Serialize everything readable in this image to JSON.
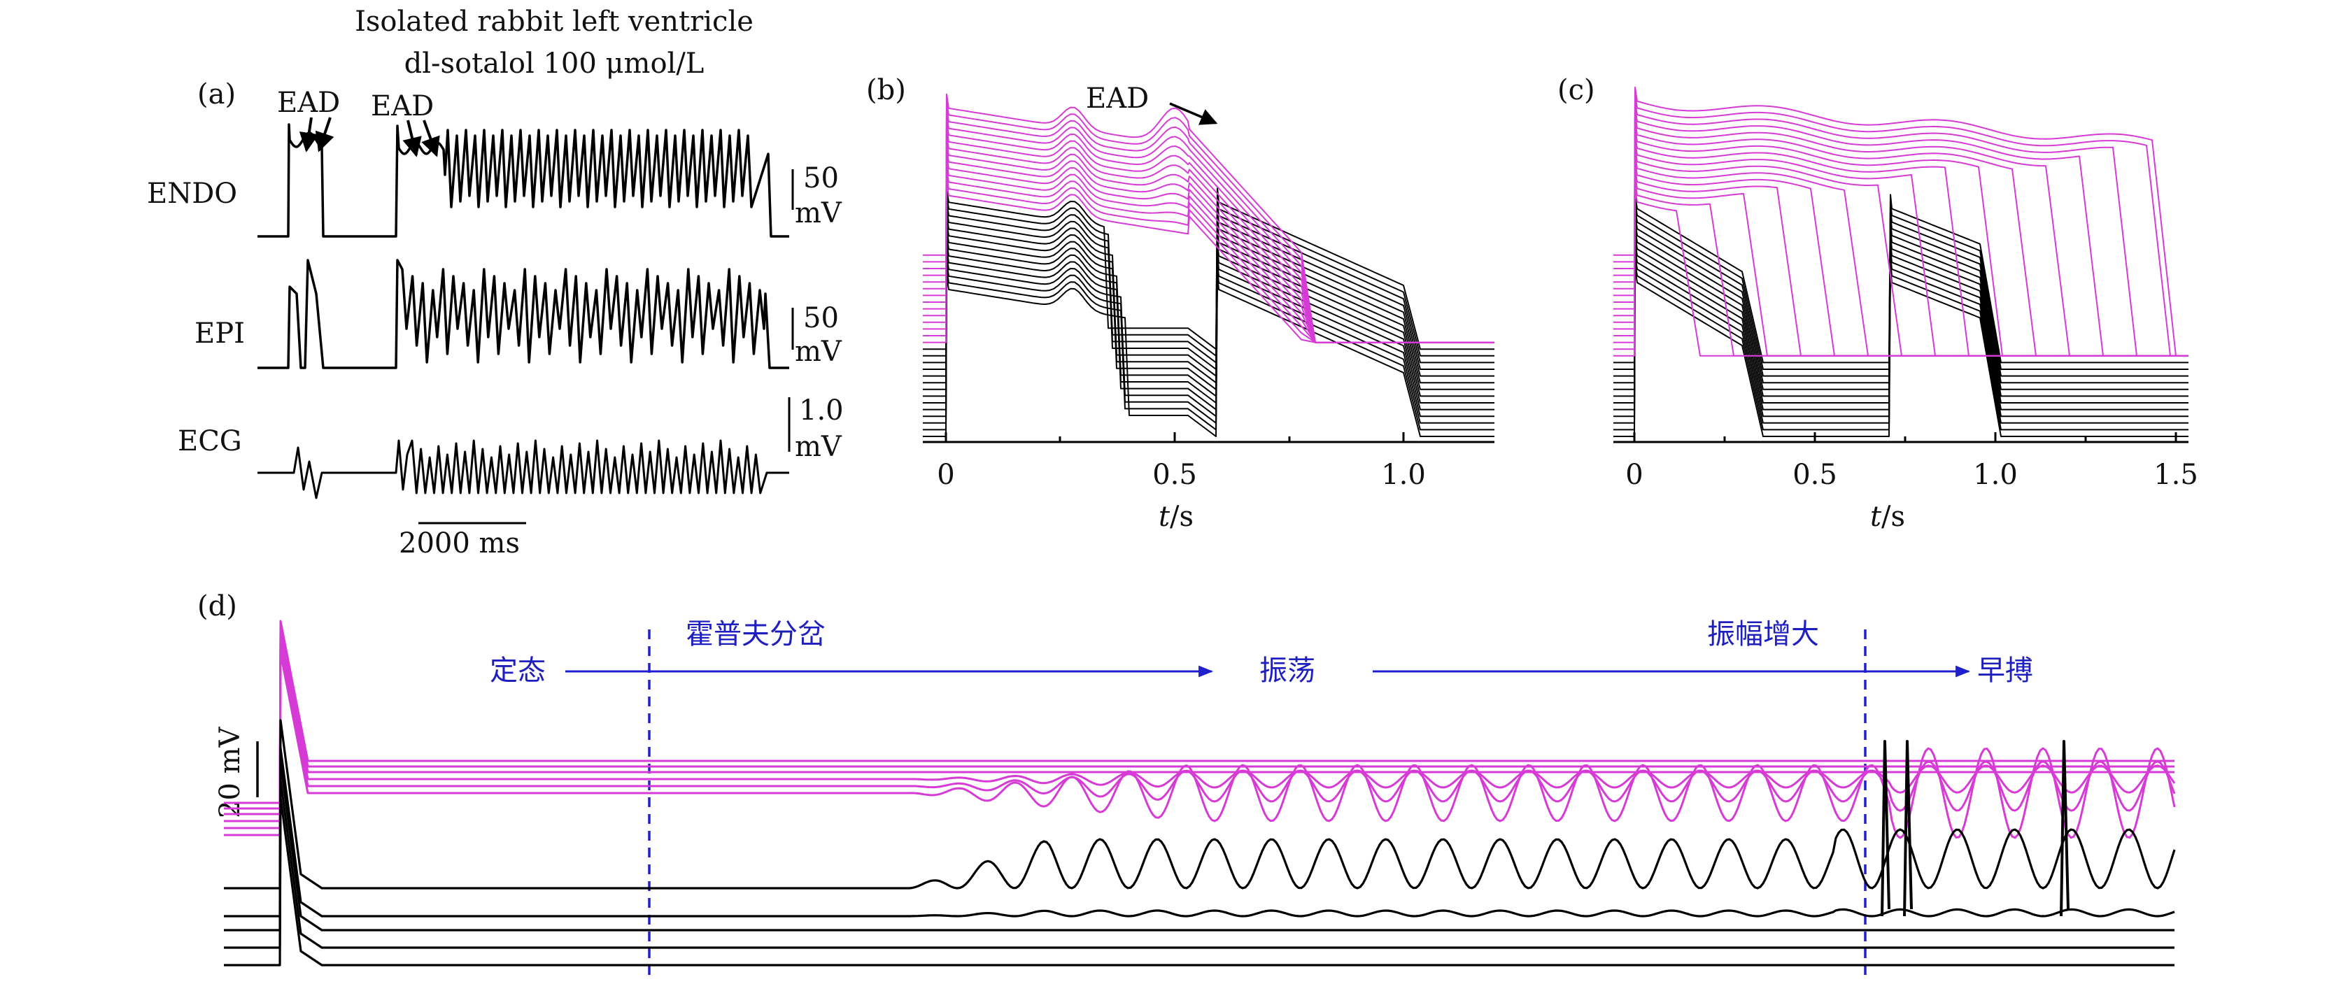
{
  "colors": {
    "magenta": "#d63bd6",
    "black": "#000000",
    "blue": "#1f1fcf"
  },
  "panel_a": {
    "label": "(a)",
    "title_line1": "Isolated rabbit left ventricle",
    "title_line2": "dl-sotalol 100 μmol/L",
    "ead_label_1": "EAD",
    "ead_label_2": "EAD",
    "traces": [
      {
        "name": "ENDO",
        "scale_value": "50",
        "scale_unit": "mV"
      },
      {
        "name": "EPI",
        "scale_value": "50",
        "scale_unit": "mV"
      },
      {
        "name": "ECG",
        "scale_value": "1.0",
        "scale_unit": "mV"
      }
    ],
    "time_scale": "2000 ms"
  },
  "panel_b": {
    "label": "(b)",
    "ead_label": "EAD",
    "xticks": [
      "0",
      "0.5",
      "1.0"
    ],
    "xlabel_var": "t",
    "xlabel_unit": "/s"
  },
  "panel_c": {
    "label": "(c)",
    "xticks": [
      "0",
      "0.5",
      "1.0",
      "1.5"
    ],
    "xlabel_var": "t",
    "xlabel_unit": "/s"
  },
  "panel_d": {
    "label": "(d)",
    "scale_label": "20 mV",
    "annotations": {
      "steady": "定态",
      "hopf": "霍普夫分岔",
      "oscillation": "振荡",
      "amplitude": "振幅增大",
      "premature": "早搏"
    }
  }
}
